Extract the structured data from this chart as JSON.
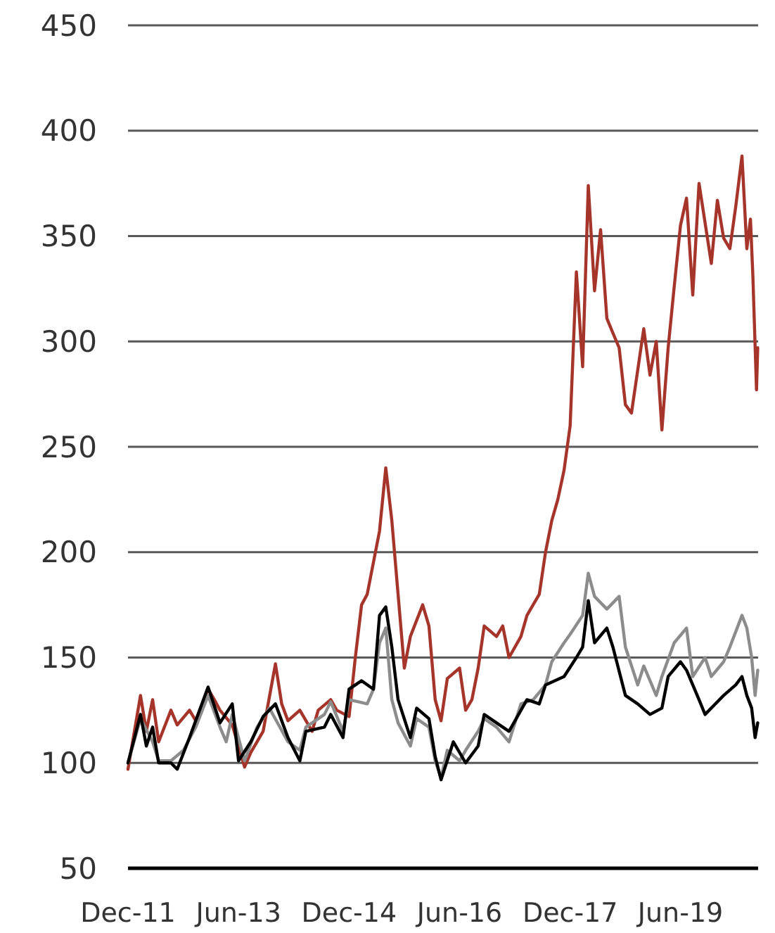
{
  "chart_data": {
    "type": "line",
    "xlim": [
      "2011-12-01",
      "2020-06-20"
    ],
    "xticks": [
      {
        "value": "2011-12-01",
        "label": "Dec-11"
      },
      {
        "value": "2013-06-01",
        "label": "Jun-13"
      },
      {
        "value": "2014-12-01",
        "label": "Dec-14"
      },
      {
        "value": "2016-06-01",
        "label": "Jun-16"
      },
      {
        "value": "2017-12-01",
        "label": "Dec-17"
      },
      {
        "value": "2019-06-01",
        "label": "Jun-19"
      }
    ],
    "ylim": [
      50,
      450
    ],
    "yticks": [
      50,
      100,
      150,
      200,
      250,
      300,
      350,
      400,
      450
    ],
    "grid": "y",
    "marker": "none",
    "line_style": "solid",
    "series": [
      {
        "color": "#a5352a",
        "x": [
          "2011-12",
          "2012-02",
          "2012-03",
          "2012-04",
          "2012-05",
          "2012-07",
          "2012-08",
          "2012-10",
          "2012-11",
          "2013-01",
          "2013-02",
          "2013-03",
          "2013-05",
          "2013-07",
          "2013-08",
          "2013-10",
          "2013-12",
          "2014-01",
          "2014-02",
          "2014-04",
          "2014-06",
          "2014-07",
          "2014-09",
          "2014-10",
          "2014-12",
          "2015-01",
          "2015-02",
          "2015-03",
          "2015-05",
          "2015-06",
          "2015-07",
          "2015-08",
          "2015-09",
          "2015-10",
          "2015-12",
          "2016-01",
          "2016-02",
          "2016-03",
          "2016-04",
          "2016-06",
          "2016-07",
          "2016-08",
          "2016-09",
          "2016-10",
          "2016-12",
          "2017-01",
          "2017-02",
          "2017-04",
          "2017-05",
          "2017-07",
          "2017-08",
          "2017-09",
          "2017-10",
          "2017-11",
          "2017-12",
          "2018-01",
          "2018-02",
          "2018-03",
          "2018-04",
          "2018-05",
          "2018-06",
          "2018-07",
          "2018-08",
          "2018-09",
          "2018-10",
          "2018-12",
          "2019-01",
          "2019-02",
          "2019-03",
          "2019-04",
          "2019-05",
          "2019-06",
          "2019-07",
          "2019-08",
          "2019-09",
          "2019-11",
          "2019-12",
          "2020-01",
          "2020-02",
          "2020-03",
          "2020-04",
          "2020-04-25",
          "2020-05-13",
          "2020-05-25",
          "2020-06-12",
          "2020-06-18"
        ],
        "values": [
          97,
          132,
          115,
          130,
          110,
          125,
          118,
          125,
          120,
          135,
          130,
          125,
          118,
          98,
          105,
          115,
          147,
          128,
          120,
          125,
          115,
          125,
          130,
          125,
          122,
          150,
          175,
          180,
          210,
          240,
          215,
          180,
          145,
          160,
          175,
          165,
          130,
          120,
          140,
          145,
          125,
          130,
          145,
          165,
          160,
          165,
          150,
          160,
          170,
          180,
          200,
          215,
          225,
          239,
          260,
          333,
          288,
          374,
          324,
          353,
          311,
          304,
          297,
          270,
          266,
          306,
          284,
          300,
          258,
          297,
          326,
          355,
          368,
          322,
          375,
          337,
          367,
          349,
          344,
          364,
          388,
          344,
          358,
          331,
          277,
          297
        ]
      },
      {
        "color": "#8c8c8c",
        "x": [
          "2011-12",
          "2012-02",
          "2012-04",
          "2012-05",
          "2012-07",
          "2012-09",
          "2012-11",
          "2013-01",
          "2013-03",
          "2013-04",
          "2013-05",
          "2013-07",
          "2013-09",
          "2013-11",
          "2014-02",
          "2014-04",
          "2014-05",
          "2014-08",
          "2014-09",
          "2014-11",
          "2014-12",
          "2015-03",
          "2015-04",
          "2015-05",
          "2015-06",
          "2015-07",
          "2015-08",
          "2015-10",
          "2015-11",
          "2016-01",
          "2016-02",
          "2016-03",
          "2016-04",
          "2016-06",
          "2016-07",
          "2016-09",
          "2016-10",
          "2016-12",
          "2017-02",
          "2017-04",
          "2017-06",
          "2017-08",
          "2017-09",
          "2017-11",
          "2017-12",
          "2018-02",
          "2018-03",
          "2018-04",
          "2018-06",
          "2018-08",
          "2018-09",
          "2018-11",
          "2018-12",
          "2019-02",
          "2019-03",
          "2019-05",
          "2019-07",
          "2019-08",
          "2019-10",
          "2019-11",
          "2020-01",
          "2020-02",
          "2020-04",
          "2020-04-25",
          "2020-05-19",
          "2020-06-05",
          "2020-06-18"
        ],
        "values": [
          100,
          121,
          110,
          101,
          101,
          106,
          117,
          132,
          117,
          110,
          123,
          101,
          117,
          126,
          110,
          106,
          117,
          123,
          129,
          115,
          130,
          128,
          135,
          157,
          164,
          130,
          119,
          108,
          121,
          117,
          101,
          93,
          106,
          101,
          106,
          115,
          121,
          117,
          110,
          128,
          130,
          137,
          148,
          157,
          161,
          170,
          190,
          179,
          173,
          179,
          155,
          137,
          146,
          132,
          141,
          157,
          164,
          141,
          150,
          141,
          148,
          155,
          170,
          164,
          150,
          132,
          144
        ]
      },
      {
        "color": "#000000",
        "x": [
          "2011-12",
          "2012-02",
          "2012-03",
          "2012-04",
          "2012-05",
          "2012-07",
          "2012-08",
          "2012-10",
          "2013-01",
          "2013-03",
          "2013-05",
          "2013-06",
          "2013-08",
          "2013-10",
          "2013-12",
          "2014-02",
          "2014-04",
          "2014-05",
          "2014-08",
          "2014-09",
          "2014-11",
          "2014-12",
          "2015-02",
          "2015-04",
          "2015-05",
          "2015-06",
          "2015-07",
          "2015-08",
          "2015-10",
          "2015-11",
          "2016-01",
          "2016-02",
          "2016-03",
          "2016-05",
          "2016-07",
          "2016-09",
          "2016-10",
          "2017-01",
          "2017-02",
          "2017-05",
          "2017-07",
          "2017-08",
          "2017-11",
          "2018-01",
          "2018-02",
          "2018-03",
          "2018-04",
          "2018-06",
          "2018-07",
          "2018-09",
          "2018-11",
          "2019-01",
          "2019-03",
          "2019-04",
          "2019-06",
          "2019-07",
          "2019-09",
          "2019-10",
          "2020-01",
          "2020-03",
          "2020-04",
          "2020-04-25",
          "2020-05-19",
          "2020-06-05",
          "2020-06-18"
        ],
        "values": [
          100,
          123,
          108,
          117,
          100,
          100,
          97,
          112,
          136,
          119,
          128,
          101,
          110,
          122,
          128,
          112,
          101,
          115,
          117,
          123,
          112,
          135,
          139,
          135,
          170,
          174,
          155,
          130,
          112,
          126,
          121,
          103,
          92,
          110,
          100,
          108,
          123,
          117,
          115,
          130,
          128,
          137,
          141,
          150,
          155,
          177,
          157,
          164,
          155,
          132,
          128,
          123,
          126,
          141,
          148,
          144,
          130,
          123,
          132,
          137,
          141,
          132,
          126,
          112,
          119
        ]
      }
    ]
  }
}
